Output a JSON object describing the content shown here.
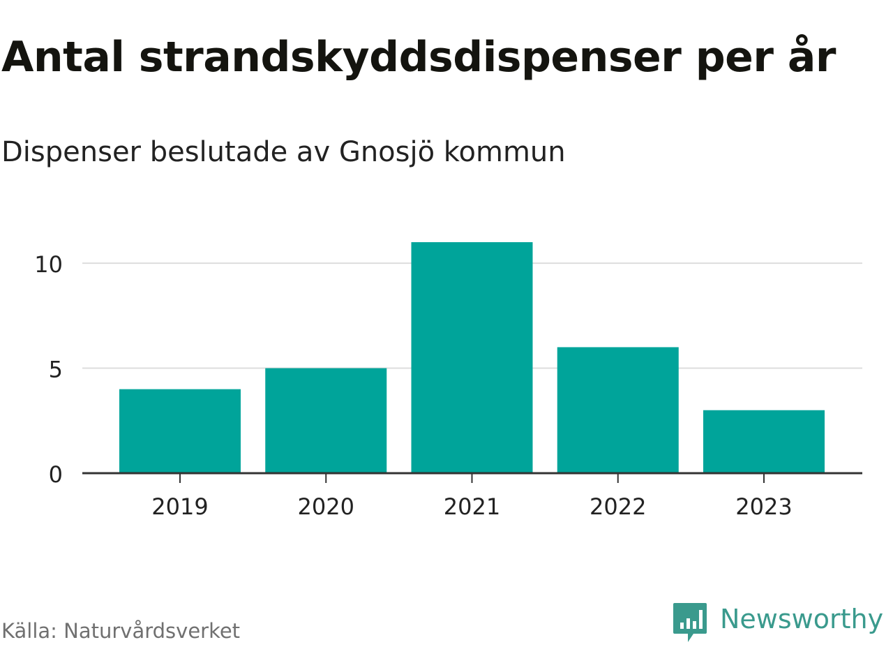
{
  "header": {
    "title": "Antal strandskyddsdispenser per år",
    "subtitle": "Dispenser beslutade av Gnosjö kommun"
  },
  "footer": {
    "source": "Källa: Naturvårdsverket",
    "brand": "Newsworthy",
    "brand_color": "#3a9a8d",
    "brand_icon": "newsworthy-logo-icon"
  },
  "colors": {
    "bar": "#00a49a",
    "grid": "#dddddd",
    "axis": "#333333",
    "text": "#222222"
  },
  "chart_data": {
    "type": "bar",
    "title": "Antal strandskyddsdispenser per år",
    "subtitle": "Dispenser beslutade av Gnosjö kommun",
    "categories": [
      "2019",
      "2020",
      "2021",
      "2022",
      "2023"
    ],
    "values": [
      4,
      5,
      11,
      6,
      3
    ],
    "xlabel": "",
    "ylabel": "",
    "ylim": [
      0,
      11
    ],
    "yticks": [
      0,
      5,
      10
    ],
    "grid": true,
    "legend": "none"
  }
}
